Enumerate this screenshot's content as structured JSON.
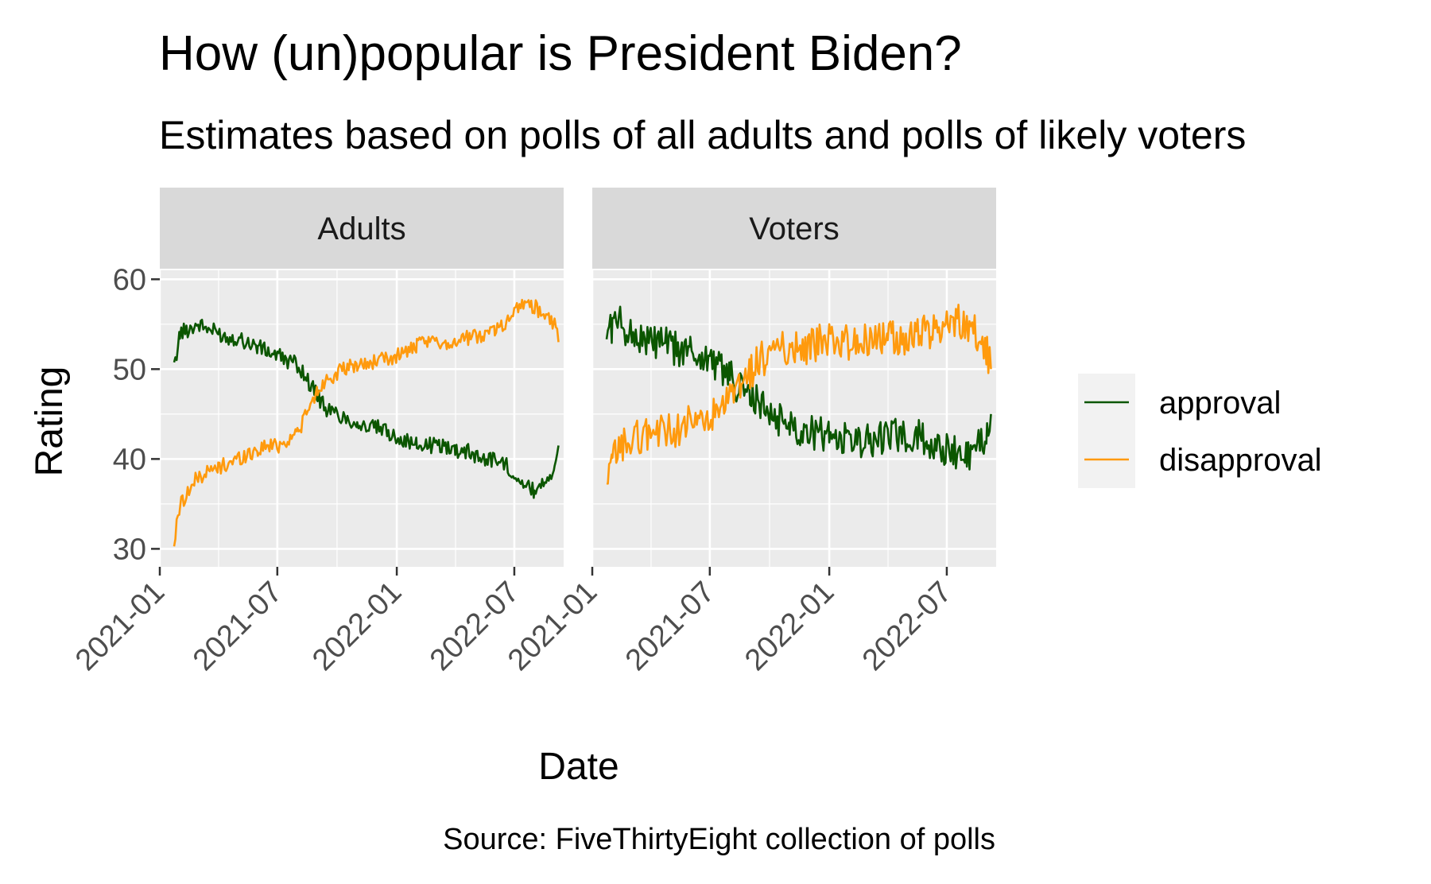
{
  "chart_data": {
    "type": "line",
    "title": "How (un)popular is President Biden?",
    "subtitle": "Estimates based on polls of all adults and polls of likely voters",
    "xlabel": "Date",
    "ylabel": "Rating",
    "caption": "Source: FiveThirtyEight collection of polls",
    "xlim": [
      "2021-01-01",
      "2022-09-15"
    ],
    "ylim": [
      28,
      61
    ],
    "x_ticks": [
      "2021-01",
      "2021-07",
      "2022-01",
      "2022-07"
    ],
    "y_ticks": [
      30,
      40,
      50,
      60
    ],
    "grid": true,
    "legend_position": "right",
    "colors": {
      "approval": "#0b5600",
      "disapproval": "#ff9a0d"
    },
    "panels": [
      {
        "name": "Adults",
        "series": [
          {
            "name": "approval",
            "x": [
              "2021-01-23",
              "2021-02-01",
              "2021-02-15",
              "2021-03-01",
              "2021-03-15",
              "2021-04-01",
              "2021-04-15",
              "2021-05-01",
              "2021-05-15",
              "2021-06-01",
              "2021-06-15",
              "2021-07-01",
              "2021-07-15",
              "2021-08-01",
              "2021-08-15",
              "2021-09-01",
              "2021-09-15",
              "2021-10-01",
              "2021-10-15",
              "2021-11-01",
              "2021-11-15",
              "2021-12-01",
              "2021-12-15",
              "2022-01-01",
              "2022-01-15",
              "2022-02-01",
              "2022-02-15",
              "2022-03-01",
              "2022-03-15",
              "2022-04-01",
              "2022-04-15",
              "2022-05-01",
              "2022-05-15",
              "2022-06-01",
              "2022-06-15",
              "2022-07-01",
              "2022-07-15",
              "2022-08-01",
              "2022-08-15",
              "2022-09-01",
              "2022-09-07"
            ],
            "values": [
              50,
              54,
              54.5,
              55,
              54.5,
              54,
              53.5,
              53.5,
              53,
              52.5,
              52,
              51.5,
              51,
              50.5,
              49,
              47,
              45.5,
              45,
              44.5,
              44,
              43.5,
              43.5,
              43,
              42.5,
              42,
              41.5,
              41.5,
              41.5,
              41.5,
              41,
              41,
              40.5,
              40,
              40,
              39.5,
              38.5,
              37,
              36.5,
              37.5,
              39,
              41.5
            ]
          },
          {
            "name": "disapproval",
            "x": [
              "2021-01-23",
              "2021-02-01",
              "2021-02-15",
              "2021-03-01",
              "2021-03-15",
              "2021-04-01",
              "2021-04-15",
              "2021-05-01",
              "2021-05-15",
              "2021-06-01",
              "2021-06-15",
              "2021-07-01",
              "2021-07-15",
              "2021-08-01",
              "2021-08-15",
              "2021-09-01",
              "2021-09-15",
              "2021-10-01",
              "2021-10-15",
              "2021-11-01",
              "2021-11-15",
              "2021-12-01",
              "2021-12-15",
              "2022-01-01",
              "2022-01-15",
              "2022-02-01",
              "2022-02-15",
              "2022-03-01",
              "2022-03-15",
              "2022-04-01",
              "2022-04-15",
              "2022-05-01",
              "2022-05-15",
              "2022-06-01",
              "2022-06-15",
              "2022-07-01",
              "2022-07-15",
              "2022-08-01",
              "2022-08-15",
              "2022-09-01",
              "2022-09-07"
            ],
            "values": [
              30.5,
              35,
              36.5,
              38,
              38.5,
              39,
              39.5,
              40,
              40.5,
              41,
              41.5,
              41.5,
              42,
              43,
              45,
              47.5,
              49,
              49.5,
              50,
              50.5,
              50.5,
              51,
              51,
              51.5,
              52,
              52.5,
              53,
              53,
              53,
              53,
              53.5,
              53.5,
              54,
              54.5,
              55,
              56.5,
              57.5,
              57,
              56,
              55,
              53
            ]
          }
        ]
      },
      {
        "name": "Voters",
        "series": [
          {
            "name": "approval",
            "x": [
              "2021-01-23",
              "2021-02-01",
              "2021-02-15",
              "2021-03-01",
              "2021-03-15",
              "2021-04-01",
              "2021-04-15",
              "2021-05-01",
              "2021-05-15",
              "2021-06-01",
              "2021-06-15",
              "2021-07-01",
              "2021-07-15",
              "2021-08-01",
              "2021-08-15",
              "2021-09-01",
              "2021-09-15",
              "2021-10-01",
              "2021-10-15",
              "2021-11-01",
              "2021-11-15",
              "2021-12-01",
              "2021-12-15",
              "2022-01-01",
              "2022-01-15",
              "2022-02-01",
              "2022-02-15",
              "2022-03-01",
              "2022-03-15",
              "2022-04-01",
              "2022-04-15",
              "2022-05-01",
              "2022-05-15",
              "2022-06-01",
              "2022-06-15",
              "2022-07-01",
              "2022-07-15",
              "2022-08-01",
              "2022-08-15",
              "2022-09-01",
              "2022-09-07"
            ],
            "values": [
              54,
              55,
              55,
              54,
              53.5,
              53,
              53,
              52.5,
              52,
              52,
              51.5,
              51,
              50.5,
              49,
              48,
              47,
              46,
              45,
              44.5,
              44,
              43.5,
              43,
              43,
              42.5,
              42.5,
              42,
              42,
              42,
              42,
              42.5,
              42.5,
              42.5,
              42.5,
              42,
              41.5,
              41,
              40.5,
              40.5,
              41,
              43,
              45
            ]
          },
          {
            "name": "disapproval",
            "x": [
              "2021-01-23",
              "2021-02-01",
              "2021-02-15",
              "2021-03-01",
              "2021-03-15",
              "2021-04-01",
              "2021-04-15",
              "2021-05-01",
              "2021-05-15",
              "2021-06-01",
              "2021-06-15",
              "2021-07-01",
              "2021-07-15",
              "2021-08-01",
              "2021-08-15",
              "2021-09-01",
              "2021-09-15",
              "2021-10-01",
              "2021-10-15",
              "2021-11-01",
              "2021-11-15",
              "2021-12-01",
              "2021-12-15",
              "2022-01-01",
              "2022-01-15",
              "2022-02-01",
              "2022-02-15",
              "2022-03-01",
              "2022-03-15",
              "2022-04-01",
              "2022-04-15",
              "2022-05-01",
              "2022-05-15",
              "2022-06-01",
              "2022-06-15",
              "2022-07-01",
              "2022-07-15",
              "2022-08-01",
              "2022-08-15",
              "2022-09-01",
              "2022-09-07"
            ],
            "values": [
              36,
              40,
              41.5,
              42,
              42.5,
              43,
              43,
              43,
              43.5,
              44,
              44,
              44.5,
              45,
              46.5,
              48,
              49.5,
              51,
              51.5,
              52,
              52.5,
              52.5,
              52.5,
              53,
              53,
              53,
              53,
              53,
              53.5,
              53.5,
              53.5,
              53.5,
              53.5,
              54,
              54,
              54.5,
              55,
              55.5,
              55,
              54,
              52,
              50
            ]
          }
        ]
      }
    ]
  }
}
